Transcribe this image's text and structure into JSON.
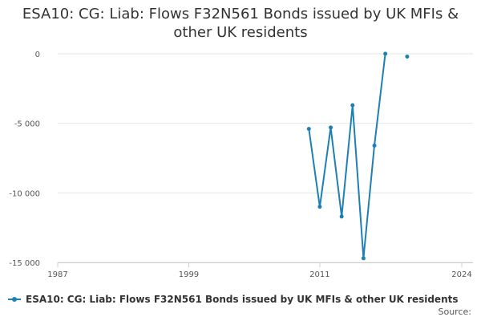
{
  "chart_data": {
    "type": "line",
    "title_lines": [
      "ESA10: CG: Liab: Flows F32N561 Bonds issued by UK MFIs &",
      "other UK residents"
    ],
    "xlabel": "",
    "ylabel": "",
    "xlim": [
      1987,
      2024
    ],
    "ylim": [
      -15000,
      0
    ],
    "x_ticks": [
      "1987",
      "1999",
      "2011",
      "2024"
    ],
    "y_ticks": [
      "0",
      "-5 000",
      "-10 000",
      "-15 000"
    ],
    "grid": true,
    "legend_position": "bottom-left",
    "series": [
      {
        "name": "ESA10: CG: Liab: Flows F32N561 Bonds issued by UK MFIs & other UK residents",
        "color": "#1f7fb4",
        "points": [
          {
            "x": 2010.0,
            "y": -5400
          },
          {
            "x": 2011.0,
            "y": -11000
          },
          {
            "x": 2012.0,
            "y": -5300
          },
          {
            "x": 2013.0,
            "y": -11700
          },
          {
            "x": 2014.0,
            "y": -3700
          },
          {
            "x": 2015.0,
            "y": -14700
          },
          {
            "x": 2016.0,
            "y": -6600
          },
          {
            "x": 2017.0,
            "y": 0
          },
          {
            "x": 2019.0,
            "y": -200
          }
        ],
        "connected_through_x": 2017.0
      }
    ],
    "source_label": "Source:"
  }
}
